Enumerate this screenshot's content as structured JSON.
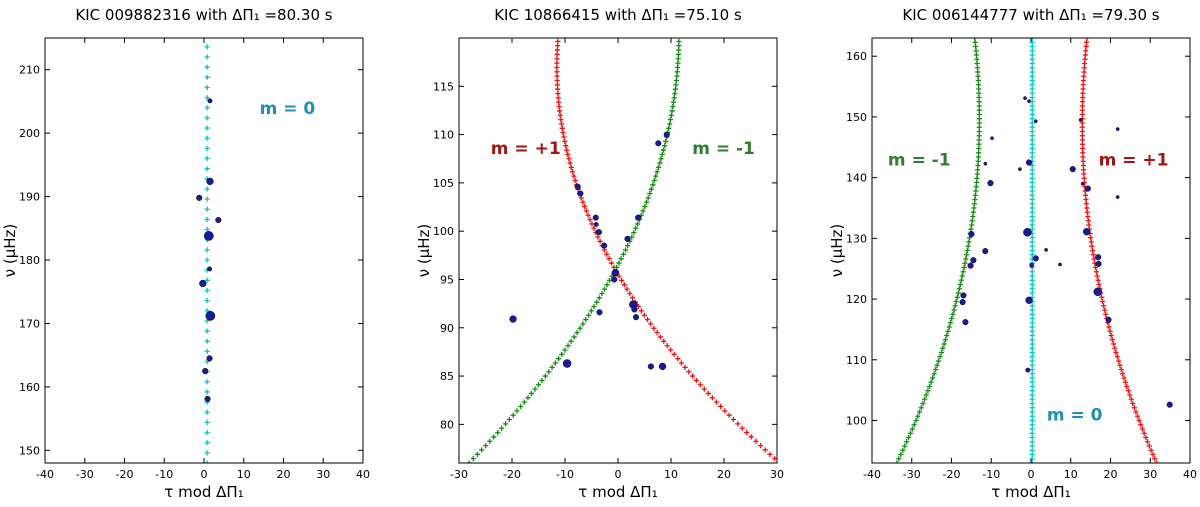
{
  "chart_data": [
    {
      "type": "scatter",
      "title": "KIC 009882316 with ΔΠ₁ =80.30 s",
      "xlabel": "τ mod ΔΠ₁",
      "ylabel": "ν (μHz)",
      "xlim": [
        -40,
        40
      ],
      "ylim": [
        148,
        215
      ],
      "xticks": [
        -40,
        -30,
        -20,
        -10,
        0,
        10,
        20,
        30,
        40
      ],
      "yticks": [
        150,
        160,
        170,
        180,
        190,
        200,
        210
      ],
      "ridges": [
        {
          "name": "m=0",
          "color": "#00c8c8",
          "marker": "+",
          "x_intercept": 0.8,
          "slope": 0,
          "nu_ref": 180,
          "y_range": [
            148,
            215
          ],
          "step": 1.6
        }
      ],
      "annotations": [
        {
          "text": "m = 0",
          "color": "#1f8fb5",
          "x": 14,
          "y": 203
        }
      ],
      "points": [
        {
          "x": 1.5,
          "y": 205.1,
          "size": 2
        },
        {
          "x": 1.5,
          "y": 192.4,
          "size": 4
        },
        {
          "x": -1.2,
          "y": 189.8,
          "size": 3
        },
        {
          "x": 3.6,
          "y": 186.3,
          "size": 3
        },
        {
          "x": 1.2,
          "y": 183.8,
          "size": 6
        },
        {
          "x": 1.4,
          "y": 178.6,
          "size": 2
        },
        {
          "x": -0.3,
          "y": 176.3,
          "size": 4
        },
        {
          "x": 1.6,
          "y": 171.2,
          "size": 6
        },
        {
          "x": 1.4,
          "y": 164.5,
          "size": 3
        },
        {
          "x": 0.3,
          "y": 162.5,
          "size": 3
        },
        {
          "x": 0.9,
          "y": 158.1,
          "size": 3
        }
      ]
    },
    {
      "type": "scatter",
      "title": "KIC 10866415 with ΔΠ₁ =75.10 s",
      "xlabel": "τ mod ΔΠ₁",
      "ylabel": "ν (μHz)",
      "xlim": [
        -30,
        30
      ],
      "ylim": [
        76,
        120
      ],
      "xticks": [
        -30,
        -20,
        -10,
        0,
        10,
        20,
        30
      ],
      "yticks": [
        80,
        85,
        90,
        95,
        100,
        105,
        110,
        115
      ],
      "ridges": [
        {
          "name": "m=+1",
          "color": "#ee1111",
          "marker": "+",
          "x_intercept": -0.5,
          "slope": -1.05,
          "nu_ref": 96,
          "curvature": 0.025,
          "y_range": [
            76,
            120
          ],
          "step": 0.45
        },
        {
          "name": "m=-1",
          "color": "#158a15",
          "marker": "+",
          "x_intercept": -0.5,
          "slope": 0.98,
          "nu_ref": 96,
          "curvature": -0.02,
          "y_range": [
            76,
            120
          ],
          "step": 0.45
        }
      ],
      "annotations": [
        {
          "text": "m = +1",
          "color": "#a31515",
          "x": -24,
          "y": 108
        },
        {
          "text": "m = -1",
          "color": "#2e7d32",
          "x": 14,
          "y": 108
        }
      ],
      "points": [
        {
          "x": 9.2,
          "y": 110.0,
          "size": 3
        },
        {
          "x": 7.6,
          "y": 109.1,
          "size": 3
        },
        {
          "x": -7.6,
          "y": 104.6,
          "size": 3
        },
        {
          "x": -7.1,
          "y": 103.9,
          "size": 3
        },
        {
          "x": -4.2,
          "y": 101.4,
          "size": 3
        },
        {
          "x": 3.8,
          "y": 101.4,
          "size": 3
        },
        {
          "x": -4.1,
          "y": 100.7,
          "size": 2
        },
        {
          "x": -3.6,
          "y": 99.9,
          "size": 3
        },
        {
          "x": 1.8,
          "y": 99.2,
          "size": 3
        },
        {
          "x": -2.6,
          "y": 98.5,
          "size": 3
        },
        {
          "x": -0.5,
          "y": 95.7,
          "size": 4
        },
        {
          "x": -0.7,
          "y": 95.0,
          "size": 3
        },
        {
          "x": 2.9,
          "y": 92.4,
          "size": 5
        },
        {
          "x": 3.1,
          "y": 91.9,
          "size": 3
        },
        {
          "x": -3.5,
          "y": 91.6,
          "size": 3
        },
        {
          "x": 3.4,
          "y": 91.1,
          "size": 3
        },
        {
          "x": -19.8,
          "y": 90.9,
          "size": 4
        },
        {
          "x": -9.6,
          "y": 86.3,
          "size": 5
        },
        {
          "x": 6.2,
          "y": 86.0,
          "size": 3
        },
        {
          "x": 8.4,
          "y": 86.0,
          "size": 4
        }
      ]
    },
    {
      "type": "scatter",
      "title": "KIC 006144777 with ΔΠ₁ =79.30 s",
      "xlabel": "τ mod ΔΠ₁",
      "ylabel": "ν (μHz)",
      "xlim": [
        -40,
        40
      ],
      "ylim": [
        93,
        163
      ],
      "xticks": [
        -40,
        -30,
        -20,
        -10,
        0,
        10,
        20,
        30,
        40
      ],
      "yticks": [
        100,
        110,
        120,
        130,
        140,
        150,
        160
      ],
      "ridges": [
        {
          "name": "m=0",
          "color": "#00c8c8",
          "marker": "+",
          "x_intercept": 0.3,
          "slope": 0,
          "nu_ref": 128,
          "y_range": [
            93,
            163
          ],
          "step": 0.7
        },
        {
          "name": "m=+1",
          "color": "#ee1111",
          "marker": "+",
          "x_intercept": 15.5,
          "slope": -0.25,
          "nu_ref": 128,
          "curvature": 0.006,
          "y_range": [
            93,
            163
          ],
          "step": 0.7
        },
        {
          "name": "m=-1",
          "color": "#158a15",
          "marker": "+",
          "x_intercept": -16,
          "slope": 0.28,
          "nu_ref": 128,
          "curvature": -0.0065,
          "y_range": [
            93,
            163
          ],
          "step": 0.7
        }
      ],
      "annotations": [
        {
          "text": "m = -1",
          "color": "#2e7d32",
          "x": -36,
          "y": 142
        },
        {
          "text": "m = +1",
          "color": "#a31515",
          "x": 17,
          "y": 142
        },
        {
          "text": "m = 0",
          "color": "#1f8fb5",
          "x": 4,
          "y": 100
        }
      ],
      "points": [
        {
          "x": -1.5,
          "y": 153.1,
          "size": 1
        },
        {
          "x": -0.5,
          "y": 152.6,
          "size": 1
        },
        {
          "x": 12.5,
          "y": 149.5,
          "size": 1
        },
        {
          "x": 1.2,
          "y": 149.3,
          "size": 1
        },
        {
          "x": 21.8,
          "y": 148.0,
          "size": 1
        },
        {
          "x": -9.8,
          "y": 146.5,
          "size": 1
        },
        {
          "x": -0.5,
          "y": 142.5,
          "size": 3
        },
        {
          "x": -11.5,
          "y": 142.3,
          "size": 1
        },
        {
          "x": -2.8,
          "y": 141.4,
          "size": 1
        },
        {
          "x": 10.5,
          "y": 141.4,
          "size": 3
        },
        {
          "x": -10.2,
          "y": 139.1,
          "size": 3
        },
        {
          "x": 14.3,
          "y": 138.2,
          "size": 3
        },
        {
          "x": 13.0,
          "y": 139.0,
          "size": 1
        },
        {
          "x": 21.8,
          "y": 136.8,
          "size": 1
        },
        {
          "x": -0.9,
          "y": 131.0,
          "size": 5
        },
        {
          "x": 14.0,
          "y": 131.1,
          "size": 4
        },
        {
          "x": -15.0,
          "y": 130.7,
          "size": 3
        },
        {
          "x": -14.5,
          "y": 126.4,
          "size": 3
        },
        {
          "x": -11.5,
          "y": 127.9,
          "size": 3
        },
        {
          "x": 3.8,
          "y": 128.1,
          "size": 1
        },
        {
          "x": 1.2,
          "y": 126.7,
          "size": 3
        },
        {
          "x": 16.9,
          "y": 126.9,
          "size": 3
        },
        {
          "x": 17.0,
          "y": 125.8,
          "size": 3
        },
        {
          "x": -15.2,
          "y": 125.5,
          "size": 3
        },
        {
          "x": 0.2,
          "y": 125.6,
          "size": 2
        },
        {
          "x": 7.3,
          "y": 125.7,
          "size": 1
        },
        {
          "x": 16.8,
          "y": 121.2,
          "size": 5
        },
        {
          "x": -17.0,
          "y": 120.6,
          "size": 3
        },
        {
          "x": -17.2,
          "y": 119.5,
          "size": 3
        },
        {
          "x": -0.5,
          "y": 119.8,
          "size": 4
        },
        {
          "x": 19.5,
          "y": 116.6,
          "size": 3
        },
        {
          "x": -16.5,
          "y": 116.2,
          "size": 3
        },
        {
          "x": -0.8,
          "y": 108.3,
          "size": 2
        },
        {
          "x": 34.9,
          "y": 102.6,
          "size": 3
        }
      ]
    }
  ]
}
